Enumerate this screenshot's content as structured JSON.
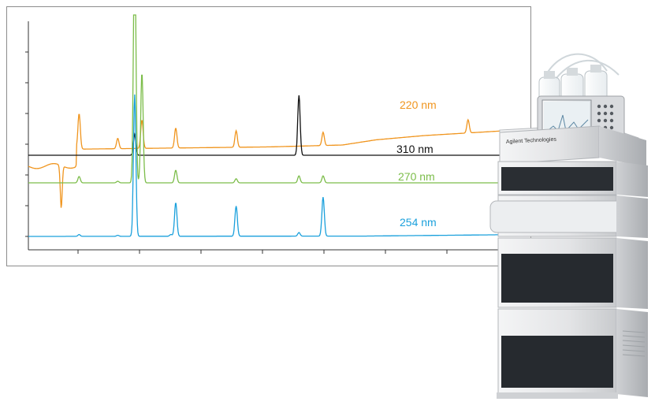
{
  "chart_data": {
    "type": "line",
    "title": "",
    "xlabel": "",
    "ylabel": "",
    "axis": {
      "x_ticks": 8,
      "y_ticks": 7,
      "grid": false
    },
    "series": [
      {
        "name": "220 nm",
        "color": "#f0951e",
        "baseline": [
          [
            0,
            0.0
          ],
          [
            0.25,
            0.06
          ],
          [
            0.5,
            0.12
          ],
          [
            0.65,
            0.2
          ],
          [
            0.72,
            0.42
          ],
          [
            0.82,
            0.6
          ],
          [
            1.0,
            0.82
          ]
        ],
        "pre_dip": true,
        "peaks": [
          [
            0.105,
            0.75
          ],
          [
            0.185,
            0.22
          ],
          [
            0.235,
            0.6
          ],
          [
            0.305,
            0.42
          ],
          [
            0.43,
            0.35
          ],
          [
            0.61,
            0.28
          ],
          [
            0.91,
            0.28
          ]
        ]
      },
      {
        "name": "310 nm",
        "color": "#111111",
        "baseline": [
          [
            0,
            0
          ],
          [
            1,
            0
          ]
        ],
        "peaks": [
          [
            0.22,
            0.33
          ],
          [
            0.56,
            0.95
          ]
        ]
      },
      {
        "name": "270 nm",
        "color": "#7cbd4a",
        "baseline": [
          [
            0,
            0
          ],
          [
            1,
            0
          ]
        ],
        "peaks": [
          [
            0.105,
            0.2
          ],
          [
            0.185,
            0.05
          ],
          [
            0.22,
            8.0
          ],
          [
            0.235,
            3.5
          ],
          [
            0.305,
            0.4
          ],
          [
            0.43,
            0.13
          ],
          [
            0.56,
            0.22
          ],
          [
            0.61,
            0.22
          ]
        ]
      },
      {
        "name": "254 nm",
        "color": "#1aa0dc",
        "baseline": [
          [
            0,
            0
          ],
          [
            0.7,
            0.02
          ],
          [
            1,
            0.1
          ]
        ],
        "peaks": [
          [
            0.105,
            0.05
          ],
          [
            0.185,
            0.03
          ],
          [
            0.22,
            4.0
          ],
          [
            0.295,
            0.05
          ],
          [
            0.305,
            0.95
          ],
          [
            0.43,
            0.85
          ],
          [
            0.56,
            0.1
          ],
          [
            0.61,
            1.1
          ]
        ]
      }
    ]
  },
  "instrument": {
    "brand_text": "Agilent Technologies",
    "colors": {
      "body": "#e7e8ea",
      "panel": "#262a2f",
      "screen": "#d8e2ea"
    }
  }
}
